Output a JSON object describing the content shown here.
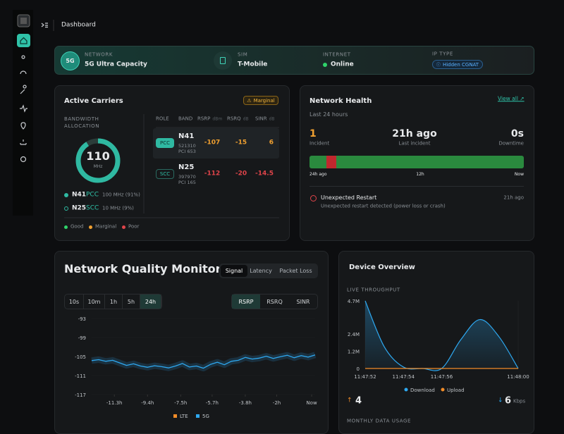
{
  "header": {
    "breadcrumb": "Dashboard"
  },
  "status": [
    {
      "label": "NETWORK",
      "value": "5G Ultra Capacity",
      "badge": "5G"
    },
    {
      "label": "SIM",
      "value": "T-Mobile"
    },
    {
      "label": "INTERNET",
      "value": "Online"
    },
    {
      "label": "IP TYPE",
      "value": "Hidden CGNAT"
    }
  ],
  "carriers": {
    "title": "Active Carriers",
    "badge": "Marginal",
    "allocation_label": "BANDWIDTH ALLOCATION",
    "total": "110",
    "unit": "MHz",
    "allocation": [
      {
        "band": "N41",
        "role": "PCC",
        "detail": "100 MHz (91%)"
      },
      {
        "band": "N25",
        "role": "SCC",
        "detail": "10 MHz (9%)"
      }
    ],
    "columns": [
      {
        "name": "ROLE"
      },
      {
        "name": "BAND"
      },
      {
        "name": "RSRP",
        "unit": "dBm"
      },
      {
        "name": "RSRQ",
        "unit": "dB"
      },
      {
        "name": "SINR",
        "unit": "dB"
      }
    ],
    "rows": [
      {
        "role": "PCC",
        "band": "N41",
        "channel": "521310",
        "pci": "PCI 653",
        "rsrp": "-107",
        "rsrq": "-15",
        "sinr": "6"
      },
      {
        "role": "SCC",
        "band": "N25",
        "channel": "397970",
        "pci": "PCI 165",
        "rsrp": "-112",
        "rsrq": "-20",
        "sinr": "-14.5"
      }
    ],
    "legend": [
      "Good",
      "Marginal",
      "Poor"
    ]
  },
  "health": {
    "title": "Network Health",
    "link": "View all",
    "subtitle": "Last 24 hours",
    "stats": [
      {
        "value": "1",
        "label": "Incident"
      },
      {
        "value": "21h ago",
        "label": "Last incident"
      },
      {
        "value": "0s",
        "label": "Downtime"
      }
    ],
    "timeline_labels": [
      "24h ago",
      "12h",
      "Now"
    ],
    "event": {
      "title": "Unexpected Restart",
      "description": "Unexpected restart detected (power loss or crash)",
      "time": "21h ago"
    }
  },
  "monitor": {
    "title": "Network Quality Monitor",
    "tabs": [
      "Signal",
      "Latency",
      "Packet Loss"
    ],
    "ranges": [
      "10s",
      "10m",
      "1h",
      "5h",
      "24h"
    ],
    "metrics": [
      "RSRP",
      "RSRQ",
      "SINR"
    ],
    "chart": {
      "type": "line",
      "x": [
        -12.6,
        -12.2,
        -11.8,
        -11.4,
        -11.0,
        -10.6,
        -10.2,
        -9.8,
        -9.4,
        -9.0,
        -8.6,
        -8.2,
        -7.8,
        -7.4,
        -7.0,
        -6.6,
        -6.2,
        -5.8,
        -5.4,
        -5.0,
        -4.6,
        -4.2,
        -3.8,
        -3.4,
        -3.0,
        -2.6,
        -2.2,
        -1.8,
        -1.4,
        -1.0,
        -0.6,
        -0.2,
        0.2
      ],
      "xlim": [
        -12.6,
        0.2
      ],
      "xticks": [
        {
          "value": -11.3,
          "label": "-11.3h"
        },
        {
          "value": -9.4,
          "label": "-9.4h"
        },
        {
          "value": -7.5,
          "label": "-7.5h"
        },
        {
          "value": -5.7,
          "label": "-5.7h"
        },
        {
          "value": -3.8,
          "label": "-3.8h"
        },
        {
          "value": -2,
          "label": "-2h"
        },
        {
          "value": 0,
          "label": "Now"
        }
      ],
      "ylim": [
        -117,
        -93
      ],
      "yticks": [
        -93,
        -99,
        -105,
        -111,
        -117
      ],
      "series": [
        {
          "name": "LTE",
          "color": "#f28c28",
          "values": [
            null,
            null,
            null,
            null,
            null,
            null,
            null,
            null,
            null,
            null,
            null,
            null,
            null,
            null,
            null,
            null,
            null,
            null,
            null,
            null,
            null,
            null,
            null,
            null,
            null,
            null,
            null,
            null,
            null,
            null,
            null,
            null,
            null
          ]
        },
        {
          "name": "5G",
          "color": "#2ea8f0",
          "values": [
            -106.3,
            -106.0,
            -106.5,
            -106.2,
            -107.0,
            -107.8,
            -107.3,
            -108.0,
            -108.4,
            -107.9,
            -108.2,
            -108.6,
            -108.0,
            -107.2,
            -108.3,
            -108.0,
            -108.7,
            -107.5,
            -106.8,
            -107.6,
            -106.5,
            -106.2,
            -105.3,
            -105.8,
            -105.5,
            -104.9,
            -105.6,
            -105.1,
            -104.6,
            -105.4,
            -104.7,
            -105.2,
            -104.5
          ]
        }
      ]
    }
  },
  "device": {
    "title": "Device Overview",
    "throughput_label": "LIVE THROUGHPUT",
    "chart": {
      "type": "line",
      "categories": [
        "11:47:52",
        null,
        "11:47:54",
        null,
        "11:47:56",
        null,
        null,
        null,
        "11:48:00"
      ],
      "ylim": [
        0,
        4.7
      ],
      "yticks": [
        0,
        {
          "value": 1.2,
          "label": "1.2M"
        },
        {
          "value": 2.4,
          "label": "2.4M"
        },
        {
          "value": 4.7,
          "label": "4.7M"
        }
      ],
      "series": [
        {
          "name": "Download",
          "color": "#2ea8f0",
          "values": [
            4.7,
            1.5,
            0.1,
            0,
            0,
            2.0,
            3.4,
            2.2,
            0
          ]
        },
        {
          "name": "Upload",
          "color": "#f28c28",
          "values": [
            0,
            0,
            0,
            0,
            0,
            0,
            0,
            0,
            0
          ]
        }
      ]
    },
    "upload_rate": "4",
    "download_rate": "6",
    "download_unit": "Kbps",
    "monthly_label": "MONTHLY DATA USAGE"
  }
}
